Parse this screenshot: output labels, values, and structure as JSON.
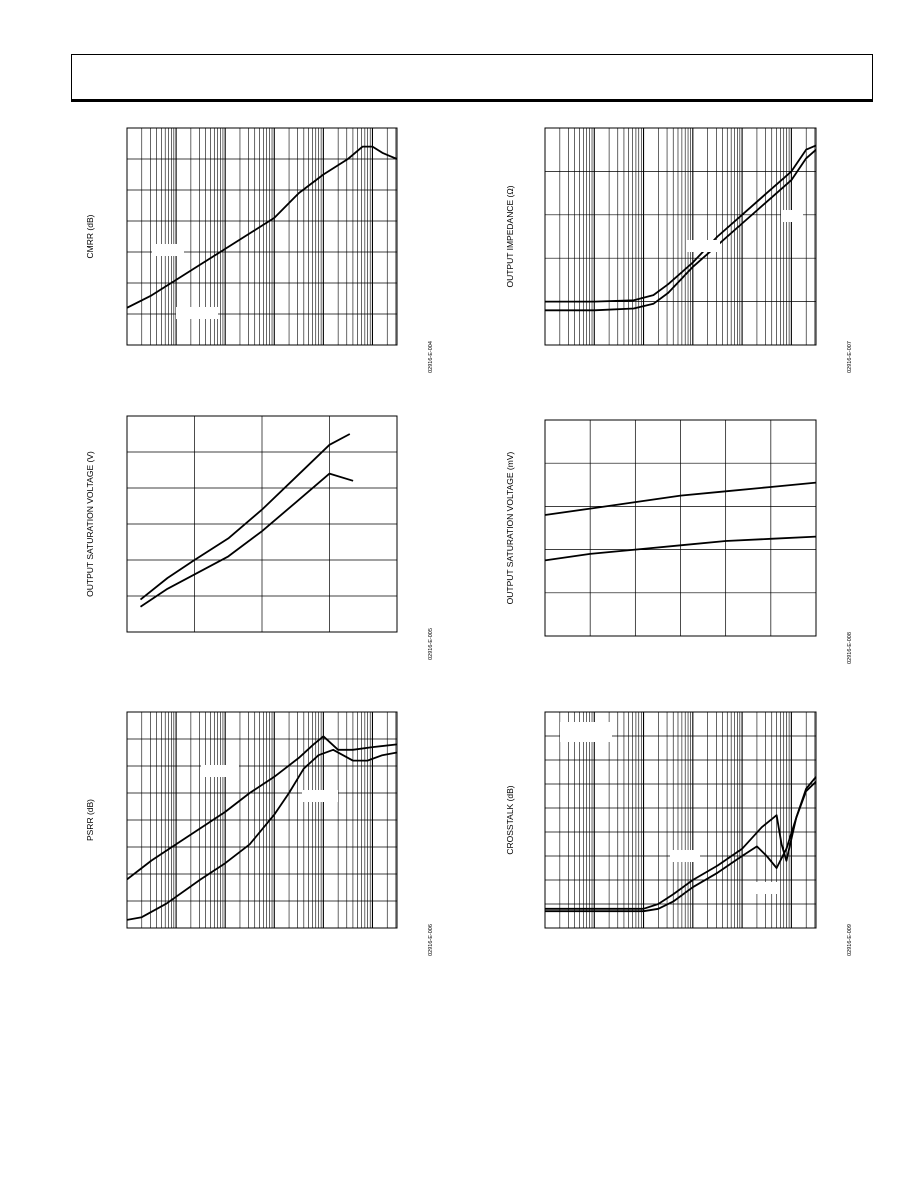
{
  "page": {
    "header_text": ""
  },
  "chart_data": [
    {
      "id": "cmrr",
      "type": "line",
      "title": "",
      "ylabel": "CMRR (dB)",
      "xlabel": "",
      "x_scale": "log",
      "xlim": [
        0,
        5.5
      ],
      "ylim": [
        0,
        7
      ],
      "grid": true,
      "figure_code": "02916-E-004",
      "series": [
        {
          "x": [
            0,
            0.5,
            1,
            1.5,
            2,
            2.5,
            3,
            3.5,
            4,
            4.5,
            4.8,
            5.0,
            5.2,
            5.35,
            5.5
          ],
          "values": [
            1.2,
            1.6,
            2.1,
            2.6,
            3.1,
            3.6,
            4.1,
            4.9,
            5.5,
            6.0,
            6.4,
            6.4,
            6.2,
            6.1,
            6.0
          ]
        }
      ],
      "label_boxes": 2
    },
    {
      "id": "output-impedance",
      "type": "line",
      "title": "",
      "ylabel": "OUTPUT IMPEDANCE (Ω)",
      "xlabel": "",
      "x_scale": "log",
      "xlim": [
        0,
        5.5
      ],
      "ylim": [
        0,
        5
      ],
      "grid": true,
      "figure_code": "02916-E-007",
      "series": [
        {
          "x": [
            0,
            1,
            1.8,
            2.2,
            2.5,
            3,
            3.5,
            4,
            4.5,
            5.0,
            5.3,
            5.5
          ],
          "values": [
            1.0,
            1.0,
            1.03,
            1.15,
            1.4,
            1.9,
            2.5,
            3.0,
            3.5,
            4.0,
            4.5,
            4.6
          ]
        },
        {
          "x": [
            0,
            1,
            1.8,
            2.2,
            2.5,
            3,
            3.5,
            4,
            4.5,
            5.0,
            5.3,
            5.5
          ],
          "values": [
            0.8,
            0.8,
            0.84,
            0.95,
            1.2,
            1.8,
            2.3,
            2.8,
            3.3,
            3.8,
            4.3,
            4.5
          ]
        }
      ],
      "label_boxes": 2
    },
    {
      "id": "output-saturation-voltage-v",
      "type": "line",
      "title": "",
      "ylabel": "OUTPUT SATURATION VOLTAGE (V)",
      "xlabel": "",
      "x_scale": "linear",
      "xlim": [
        0,
        4
      ],
      "ylim": [
        0,
        6
      ],
      "grid": true,
      "figure_code": "02916-E-005",
      "series": [
        {
          "x": [
            0.2,
            0.6,
            1.0,
            1.5,
            2.0,
            2.5,
            3.0,
            3.3
          ],
          "values": [
            0.9,
            1.5,
            2.0,
            2.6,
            3.4,
            4.3,
            5.2,
            5.5
          ]
        },
        {
          "x": [
            0.2,
            0.6,
            1.0,
            1.5,
            2.0,
            2.5,
            3.0,
            3.35
          ],
          "values": [
            0.7,
            1.2,
            1.6,
            2.1,
            2.8,
            3.6,
            4.4,
            4.2
          ]
        }
      ],
      "label_boxes": 0
    },
    {
      "id": "output-saturation-voltage-mv",
      "type": "line",
      "title": "",
      "ylabel": "OUTPUT SATURATION VOLTAGE (mV)",
      "xlabel": "",
      "x_scale": "linear",
      "xlim": [
        0,
        6
      ],
      "ylim": [
        0,
        5
      ],
      "grid": true,
      "figure_code": "02916-E-008",
      "series": [
        {
          "x": [
            0,
            1,
            2,
            3,
            4,
            5,
            6
          ],
          "values": [
            2.8,
            2.95,
            3.1,
            3.25,
            3.35,
            3.45,
            3.55
          ]
        },
        {
          "x": [
            0,
            1,
            2,
            3,
            4,
            5,
            6
          ],
          "values": [
            1.75,
            1.9,
            2.0,
            2.1,
            2.2,
            2.25,
            2.3
          ]
        }
      ],
      "label_boxes": 0
    },
    {
      "id": "psrr",
      "type": "line",
      "title": "",
      "ylabel": "PSRR (dB)",
      "xlabel": "",
      "x_scale": "log",
      "xlim": [
        0,
        5.5
      ],
      "ylim": [
        0,
        8
      ],
      "grid": true,
      "figure_code": "02916-E-006",
      "series": [
        {
          "x": [
            0,
            0.5,
            1,
            1.5,
            2,
            2.5,
            3,
            3.5,
            3.8,
            4.0,
            4.3,
            4.6,
            5.0,
            5.5
          ],
          "values": [
            1.8,
            2.5,
            3.1,
            3.7,
            4.3,
            5.0,
            5.6,
            6.3,
            6.8,
            7.1,
            6.6,
            6.6,
            6.7,
            6.8
          ]
        },
        {
          "x": [
            0,
            0.3,
            0.8,
            1.5,
            2,
            2.5,
            3,
            3.3,
            3.6,
            3.9,
            4.2,
            4.6,
            4.9,
            5.2,
            5.5
          ],
          "values": [
            0.3,
            0.4,
            0.9,
            1.8,
            2.4,
            3.1,
            4.2,
            5.0,
            5.9,
            6.4,
            6.6,
            6.2,
            6.2,
            6.4,
            6.5
          ]
        }
      ],
      "label_boxes": 2
    },
    {
      "id": "crosstalk",
      "type": "line",
      "title": "",
      "ylabel": "CROSSTALK (dB)",
      "xlabel": "",
      "x_scale": "log",
      "xlim": [
        0,
        5.5
      ],
      "ylim": [
        0,
        9
      ],
      "grid": true,
      "figure_code": "02916-E-009",
      "series": [
        {
          "x": [
            0,
            1,
            2,
            2.3,
            2.6,
            3,
            3.5,
            4,
            4.4,
            4.7,
            4.8,
            4.9,
            5.1,
            5.3,
            5.5
          ],
          "values": [
            0.8,
            0.8,
            0.8,
            1.0,
            1.4,
            2.0,
            2.6,
            3.3,
            4.2,
            4.7,
            3.5,
            2.8,
            4.6,
            5.8,
            6.3
          ]
        },
        {
          "x": [
            0,
            1,
            2,
            2.3,
            2.6,
            3,
            3.5,
            4,
            4.3,
            4.5,
            4.7,
            4.9,
            5.1,
            5.3,
            5.5
          ],
          "values": [
            0.7,
            0.7,
            0.7,
            0.8,
            1.1,
            1.7,
            2.3,
            3.0,
            3.4,
            3.0,
            2.5,
            3.3,
            4.6,
            5.7,
            6.1
          ]
        }
      ],
      "label_boxes": 3
    }
  ]
}
